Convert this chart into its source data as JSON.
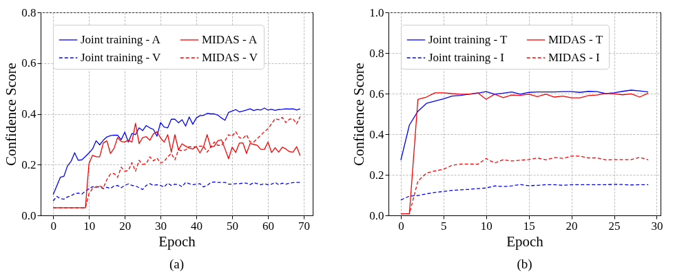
{
  "chart_data": [
    {
      "type": "line",
      "xlabel": "Epoch",
      "ylabel": "Confidence Score",
      "x": [
        0,
        1,
        2,
        3,
        4,
        5,
        6,
        7,
        8,
        9,
        10,
        11,
        12,
        13,
        14,
        15,
        16,
        17,
        18,
        19,
        20,
        21,
        22,
        23,
        24,
        25,
        26,
        27,
        28,
        29,
        30,
        31,
        32,
        33,
        34,
        35,
        36,
        37,
        38,
        39,
        40,
        41,
        42,
        43,
        44,
        45,
        46,
        47,
        48,
        49,
        50,
        51,
        52,
        53,
        54,
        55,
        56,
        57,
        58,
        59,
        60,
        61,
        62,
        63,
        64,
        65,
        66,
        67,
        68,
        69
      ],
      "xlim": [
        -3.5,
        72.5
      ],
      "xticks": [
        0,
        10,
        20,
        30,
        40,
        50,
        60,
        70
      ],
      "ylim": [
        0,
        0.8
      ],
      "yticks": [
        {
          "value": 0,
          "label": "0.0"
        },
        0.2,
        0.4,
        0.6,
        0.8
      ],
      "grid": true,
      "legend": "top",
      "marker": "none",
      "annotations": [
        "(a)"
      ],
      "series": [
        {
          "name": "Joint training - A",
          "color": "#0000ff",
          "line_style": "solid",
          "values": [
            0.082,
            0.116,
            0.15,
            0.154,
            0.195,
            0.213,
            0.247,
            0.217,
            0.219,
            0.232,
            0.246,
            0.262,
            0.294,
            0.278,
            0.296,
            0.309,
            0.314,
            0.316,
            0.316,
            0.298,
            0.328,
            0.289,
            0.323,
            0.318,
            0.345,
            0.334,
            0.354,
            0.345,
            0.339,
            0.312,
            0.366,
            0.348,
            0.345,
            0.379,
            0.379,
            0.365,
            0.377,
            0.352,
            0.388,
            0.359,
            0.384,
            0.393,
            0.394,
            0.402,
            0.4,
            0.4,
            0.395,
            0.384,
            0.375,
            0.406,
            0.411,
            0.417,
            0.408,
            0.411,
            0.415,
            0.42,
            0.413,
            0.417,
            0.415,
            0.423,
            0.415,
            0.418,
            0.414,
            0.417,
            0.418,
            0.42,
            0.419,
            0.42,
            0.415,
            0.42
          ]
        },
        {
          "name": "Joint training - V",
          "color": "#0000ff",
          "line_style": "dashed",
          "values": [
            0.057,
            0.075,
            0.066,
            0.064,
            0.073,
            0.077,
            0.086,
            0.088,
            0.084,
            0.095,
            0.105,
            0.113,
            0.111,
            0.113,
            0.105,
            0.111,
            0.106,
            0.116,
            0.118,
            0.109,
            0.118,
            0.124,
            0.118,
            0.116,
            0.109,
            0.102,
            0.118,
            0.125,
            0.118,
            0.121,
            0.118,
            0.112,
            0.127,
            0.118,
            0.123,
            0.121,
            0.113,
            0.13,
            0.125,
            0.121,
            0.123,
            0.125,
            0.112,
            0.118,
            0.129,
            0.132,
            0.13,
            0.13,
            0.13,
            0.123,
            0.123,
            0.125,
            0.125,
            0.127,
            0.127,
            0.121,
            0.129,
            0.125,
            0.121,
            0.125,
            0.121,
            0.123,
            0.13,
            0.121,
            0.127,
            0.123,
            0.127,
            0.129,
            0.13,
            0.13
          ]
        },
        {
          "name": "MIDAS - A",
          "color": "#ff0000",
          "line_style": "solid",
          "values": [
            0.03,
            0.03,
            0.03,
            0.03,
            0.03,
            0.03,
            0.03,
            0.03,
            0.03,
            0.03,
            0.204,
            0.237,
            0.231,
            0.231,
            0.285,
            0.294,
            0.244,
            0.264,
            0.307,
            0.291,
            0.289,
            0.296,
            0.289,
            0.363,
            0.283,
            0.307,
            0.31,
            0.296,
            0.321,
            0.33,
            0.305,
            0.289,
            0.318,
            0.249,
            0.318,
            0.258,
            0.282,
            0.273,
            0.265,
            0.262,
            0.271,
            0.246,
            0.271,
            0.318,
            0.269,
            0.273,
            0.294,
            0.298,
            0.262,
            0.223,
            0.269,
            0.248,
            0.285,
            0.286,
            0.244,
            0.283,
            0.28,
            0.276,
            0.26,
            0.26,
            0.289,
            0.248,
            0.267,
            0.249,
            0.269,
            0.262,
            0.251,
            0.249,
            0.271,
            0.235
          ]
        },
        {
          "name": "MIDAS - V",
          "color": "#ff0000",
          "line_style": "dashed",
          "values": [
            0.03,
            0.03,
            0.03,
            0.03,
            0.03,
            0.03,
            0.03,
            0.03,
            0.03,
            0.03,
            0.086,
            0.106,
            0.113,
            0.116,
            0.109,
            0.141,
            0.163,
            0.165,
            0.15,
            0.19,
            0.174,
            0.177,
            0.208,
            0.174,
            0.217,
            0.201,
            0.204,
            0.231,
            0.215,
            0.226,
            0.206,
            0.213,
            0.231,
            0.244,
            0.219,
            0.258,
            0.255,
            0.258,
            0.271,
            0.269,
            0.271,
            0.273,
            0.273,
            0.249,
            0.269,
            0.289,
            0.276,
            0.276,
            0.294,
            0.318,
            0.312,
            0.33,
            0.307,
            0.303,
            0.318,
            0.289,
            0.289,
            0.303,
            0.316,
            0.33,
            0.341,
            0.361,
            0.381,
            0.377,
            0.386,
            0.366,
            0.379,
            0.381,
            0.361,
            0.39
          ]
        }
      ]
    },
    {
      "type": "line",
      "xlabel": "Epoch",
      "ylabel": "Confidence Score",
      "x": [
        0,
        1,
        2,
        3,
        4,
        5,
        6,
        7,
        8,
        9,
        10,
        11,
        12,
        13,
        14,
        15,
        16,
        17,
        18,
        19,
        20,
        21,
        22,
        23,
        24,
        25,
        26,
        27,
        28,
        29
      ],
      "xlim": [
        -1.45,
        30.45
      ],
      "xticks": [
        0,
        5,
        10,
        15,
        20,
        25,
        30
      ],
      "ylim": [
        0,
        1
      ],
      "yticks": [
        {
          "value": 0,
          "label": "0.0"
        },
        0.2,
        0.4,
        0.6,
        0.8,
        {
          "value": 1,
          "label": "1.0"
        }
      ],
      "grid": true,
      "legend": "top",
      "marker": "none",
      "annotations": [
        "(b)"
      ],
      "series": [
        {
          "name": "Joint training - T",
          "color": "#0000ff",
          "line_style": "solid",
          "values": [
            0.272,
            0.445,
            0.513,
            0.552,
            0.563,
            0.574,
            0.588,
            0.591,
            0.597,
            0.602,
            0.61,
            0.597,
            0.602,
            0.608,
            0.597,
            0.606,
            0.608,
            0.608,
            0.608,
            0.61,
            0.61,
            0.606,
            0.611,
            0.61,
            0.6,
            0.604,
            0.611,
            0.617,
            0.613,
            0.608
          ]
        },
        {
          "name": "Joint training - I",
          "color": "#0000ff",
          "line_style": "dashed",
          "values": [
            0.076,
            0.095,
            0.098,
            0.106,
            0.113,
            0.118,
            0.123,
            0.126,
            0.128,
            0.132,
            0.135,
            0.145,
            0.142,
            0.145,
            0.152,
            0.146,
            0.148,
            0.151,
            0.151,
            0.148,
            0.151,
            0.151,
            0.151,
            0.151,
            0.151,
            0.153,
            0.152,
            0.15,
            0.151,
            0.151
          ]
        },
        {
          "name": "MIDAS - T",
          "color": "#ff0000",
          "line_style": "solid",
          "values": [
            0.008,
            0.008,
            0.572,
            0.583,
            0.604,
            0.604,
            0.6,
            0.597,
            0.597,
            0.604,
            0.572,
            0.597,
            0.58,
            0.593,
            0.591,
            0.597,
            0.585,
            0.597,
            0.583,
            0.588,
            0.579,
            0.579,
            0.59,
            0.593,
            0.601,
            0.599,
            0.594,
            0.599,
            0.583,
            0.602
          ]
        },
        {
          "name": "MIDAS - I",
          "color": "#ff0000",
          "line_style": "dashed",
          "values": [
            0.008,
            0.008,
            0.169,
            0.208,
            0.219,
            0.227,
            0.247,
            0.253,
            0.253,
            0.252,
            0.28,
            0.258,
            0.274,
            0.268,
            0.272,
            0.275,
            0.283,
            0.274,
            0.285,
            0.281,
            0.292,
            0.292,
            0.283,
            0.283,
            0.274,
            0.275,
            0.275,
            0.275,
            0.286,
            0.274
          ]
        }
      ]
    }
  ]
}
